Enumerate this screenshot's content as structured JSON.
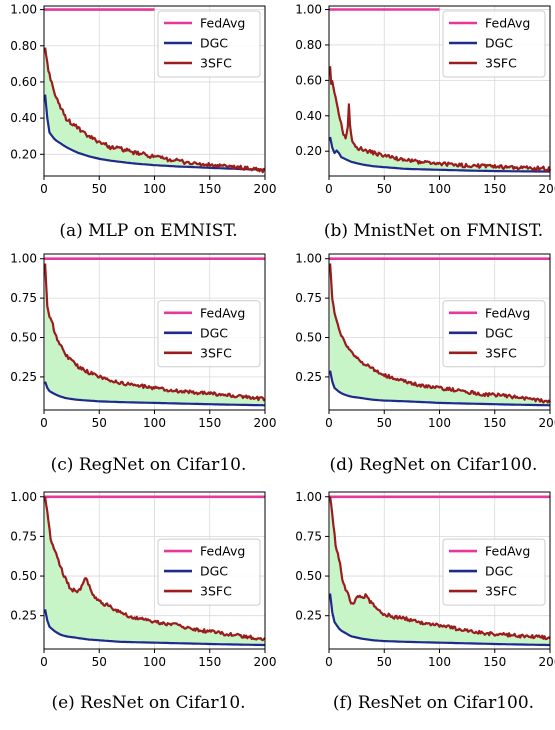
{
  "chart_data": [
    {
      "type": "line",
      "caption": "(a) MLP on EMNIST.",
      "xlim": [
        0,
        200
      ],
      "ylim": [
        0.08,
        1.02
      ],
      "xticks": [
        0,
        50,
        100,
        150,
        200
      ],
      "yticks": [
        0.2,
        0.4,
        0.6,
        0.8,
        1.0
      ],
      "ytick_labels": [
        "0.20",
        "0.40",
        "0.60",
        "0.80",
        "1.00"
      ],
      "grid": true,
      "legend_position": "top-right",
      "fill_between": [
        "DGC",
        "3SFC"
      ],
      "series": [
        {
          "name": "FedAvg",
          "color": "#e8379b",
          "x": [
            0,
            100
          ],
          "y": [
            1.0,
            1.0
          ]
        },
        {
          "name": "DGC",
          "color": "#1e2a8c",
          "x": [
            1,
            3,
            5,
            10,
            15,
            20,
            30,
            40,
            50,
            60,
            80,
            100,
            120,
            150,
            180,
            200
          ],
          "y": [
            0.53,
            0.4,
            0.32,
            0.28,
            0.26,
            0.24,
            0.21,
            0.19,
            0.175,
            0.165,
            0.15,
            0.14,
            0.133,
            0.125,
            0.118,
            0.115
          ]
        },
        {
          "name": "3SFC",
          "color": "#9b1c1c",
          "x": [
            1,
            3,
            5,
            8,
            10,
            15,
            20,
            25,
            30,
            35,
            40,
            50,
            60,
            70,
            80,
            90,
            100,
            120,
            140,
            160,
            180,
            200
          ],
          "y": [
            0.79,
            0.7,
            0.64,
            0.58,
            0.52,
            0.46,
            0.4,
            0.37,
            0.35,
            0.32,
            0.3,
            0.27,
            0.24,
            0.23,
            0.21,
            0.2,
            0.185,
            0.165,
            0.145,
            0.135,
            0.125,
            0.11
          ]
        }
      ]
    },
    {
      "type": "line",
      "caption": "(b) MnistNet on FMNIST.",
      "xlim": [
        0,
        200
      ],
      "ylim": [
        0.06,
        1.02
      ],
      "xticks": [
        0,
        50,
        100,
        150,
        200
      ],
      "yticks": [
        0.2,
        0.4,
        0.6,
        0.8,
        1.0
      ],
      "ytick_labels": [
        "0.20",
        "0.40",
        "0.60",
        "0.80",
        "1.00"
      ],
      "grid": true,
      "legend_position": "top-right",
      "fill_between": [
        "DGC",
        "3SFC"
      ],
      "series": [
        {
          "name": "FedAvg",
          "color": "#e8379b",
          "x": [
            0,
            100
          ],
          "y": [
            1.0,
            1.0
          ]
        },
        {
          "name": "DGC",
          "color": "#1e2a8c",
          "x": [
            1,
            3,
            5,
            8,
            10,
            15,
            20,
            30,
            40,
            50,
            70,
            100,
            130,
            160,
            200
          ],
          "y": [
            0.28,
            0.22,
            0.19,
            0.21,
            0.17,
            0.155,
            0.14,
            0.125,
            0.115,
            0.11,
            0.1,
            0.095,
            0.09,
            0.087,
            0.085
          ]
        },
        {
          "name": "3SFC",
          "color": "#9b1c1c",
          "x": [
            1,
            2,
            3,
            5,
            7,
            9,
            11,
            13,
            15,
            17,
            18,
            19,
            21,
            23,
            25,
            30,
            35,
            40,
            50,
            60,
            70,
            80,
            100,
            120,
            140,
            160,
            180,
            200
          ],
          "y": [
            0.68,
            0.58,
            0.6,
            0.52,
            0.48,
            0.4,
            0.36,
            0.3,
            0.28,
            0.33,
            0.46,
            0.35,
            0.26,
            0.25,
            0.22,
            0.21,
            0.2,
            0.19,
            0.175,
            0.16,
            0.15,
            0.14,
            0.13,
            0.12,
            0.115,
            0.11,
            0.105,
            0.1
          ]
        }
      ]
    },
    {
      "type": "line",
      "caption": "(c) RegNet on Cifar10.",
      "xlim": [
        0,
        200
      ],
      "ylim": [
        0.04,
        1.03
      ],
      "xticks": [
        0,
        50,
        100,
        150,
        200
      ],
      "yticks": [
        0.25,
        0.5,
        0.75,
        1.0
      ],
      "ytick_labels": [
        "0.25",
        "0.50",
        "0.75",
        "1.00"
      ],
      "grid": true,
      "legend_position": "right",
      "fill_between": [
        "DGC",
        "3SFC"
      ],
      "series": [
        {
          "name": "FedAvg",
          "color": "#e8379b",
          "x": [
            0,
            200
          ],
          "y": [
            1.0,
            1.0
          ]
        },
        {
          "name": "DGC",
          "color": "#1e2a8c",
          "x": [
            1,
            3,
            5,
            10,
            15,
            20,
            30,
            40,
            50,
            70,
            100,
            130,
            160,
            200
          ],
          "y": [
            0.22,
            0.18,
            0.16,
            0.14,
            0.125,
            0.115,
            0.105,
            0.1,
            0.095,
            0.09,
            0.085,
            0.08,
            0.075,
            0.07
          ]
        },
        {
          "name": "3SFC",
          "color": "#9b1c1c",
          "x": [
            1,
            3,
            5,
            8,
            10,
            15,
            20,
            25,
            30,
            40,
            50,
            60,
            70,
            80,
            100,
            120,
            140,
            160,
            180,
            200
          ],
          "y": [
            0.97,
            0.7,
            0.63,
            0.58,
            0.52,
            0.45,
            0.39,
            0.35,
            0.32,
            0.28,
            0.25,
            0.23,
            0.21,
            0.2,
            0.18,
            0.16,
            0.15,
            0.14,
            0.125,
            0.11
          ]
        }
      ]
    },
    {
      "type": "line",
      "caption": "(d) RegNet on Cifar100.",
      "xlim": [
        0,
        200
      ],
      "ylim": [
        0.04,
        1.03
      ],
      "xticks": [
        0,
        50,
        100,
        150,
        200
      ],
      "yticks": [
        0.25,
        0.5,
        0.75,
        1.0
      ],
      "ytick_labels": [
        "0.25",
        "0.50",
        "0.75",
        "1.00"
      ],
      "grid": true,
      "legend_position": "right",
      "fill_between": [
        "DGC",
        "3SFC"
      ],
      "series": [
        {
          "name": "FedAvg",
          "color": "#e8379b",
          "x": [
            0,
            200
          ],
          "y": [
            1.0,
            1.0
          ]
        },
        {
          "name": "DGC",
          "color": "#1e2a8c",
          "x": [
            1,
            3,
            5,
            10,
            15,
            20,
            30,
            40,
            50,
            70,
            100,
            130,
            160,
            200
          ],
          "y": [
            0.29,
            0.22,
            0.18,
            0.15,
            0.135,
            0.125,
            0.115,
            0.105,
            0.1,
            0.095,
            0.085,
            0.08,
            0.075,
            0.07
          ]
        },
        {
          "name": "3SFC",
          "color": "#9b1c1c",
          "x": [
            1,
            3,
            5,
            8,
            10,
            15,
            20,
            25,
            30,
            40,
            50,
            60,
            70,
            80,
            100,
            120,
            140,
            160,
            180,
            200
          ],
          "y": [
            0.97,
            0.75,
            0.65,
            0.58,
            0.53,
            0.46,
            0.41,
            0.37,
            0.34,
            0.3,
            0.26,
            0.24,
            0.22,
            0.2,
            0.18,
            0.16,
            0.14,
            0.13,
            0.11,
            0.09
          ]
        }
      ]
    },
    {
      "type": "line",
      "caption": "(e) ResNet on Cifar10.",
      "xlim": [
        0,
        200
      ],
      "ylim": [
        0.04,
        1.03
      ],
      "xticks": [
        0,
        50,
        100,
        150,
        200
      ],
      "yticks": [
        0.25,
        0.5,
        0.75,
        1.0
      ],
      "ytick_labels": [
        "0.25",
        "0.50",
        "0.75",
        "1.00"
      ],
      "grid": true,
      "legend_position": "right",
      "fill_between": [
        "DGC",
        "3SFC"
      ],
      "series": [
        {
          "name": "FedAvg",
          "color": "#e8379b",
          "x": [
            0,
            200
          ],
          "y": [
            1.0,
            1.0
          ]
        },
        {
          "name": "DGC",
          "color": "#1e2a8c",
          "x": [
            1,
            3,
            5,
            10,
            15,
            20,
            30,
            40,
            50,
            70,
            100,
            130,
            160,
            200
          ],
          "y": [
            0.29,
            0.22,
            0.18,
            0.15,
            0.13,
            0.12,
            0.11,
            0.1,
            0.095,
            0.085,
            0.08,
            0.075,
            0.07,
            0.065
          ]
        },
        {
          "name": "3SFC",
          "color": "#9b1c1c",
          "x": [
            1,
            2,
            4,
            6,
            8,
            10,
            12,
            15,
            18,
            21,
            24,
            27,
            30,
            33,
            36,
            38,
            40,
            43,
            46,
            50,
            53,
            56,
            60,
            65,
            70,
            80,
            90,
            100,
            120,
            140,
            160,
            180,
            200
          ],
          "y": [
            1.0,
            0.95,
            0.85,
            0.73,
            0.7,
            0.65,
            0.62,
            0.56,
            0.5,
            0.46,
            0.42,
            0.41,
            0.4,
            0.42,
            0.47,
            0.49,
            0.45,
            0.4,
            0.37,
            0.34,
            0.33,
            0.32,
            0.31,
            0.28,
            0.27,
            0.24,
            0.23,
            0.21,
            0.19,
            0.16,
            0.14,
            0.12,
            0.1
          ]
        }
      ]
    },
    {
      "type": "line",
      "caption": "(f) ResNet on Cifar100.",
      "xlim": [
        0,
        200
      ],
      "ylim": [
        0.04,
        1.03
      ],
      "xticks": [
        0,
        50,
        100,
        150,
        200
      ],
      "yticks": [
        0.25,
        0.5,
        0.75,
        1.0
      ],
      "ytick_labels": [
        "0.25",
        "0.50",
        "0.75",
        "1.00"
      ],
      "grid": true,
      "legend_position": "right",
      "fill_between": [
        "DGC",
        "3SFC"
      ],
      "series": [
        {
          "name": "FedAvg",
          "color": "#e8379b",
          "x": [
            0,
            200
          ],
          "y": [
            1.0,
            1.0
          ]
        },
        {
          "name": "DGC",
          "color": "#1e2a8c",
          "x": [
            1,
            3,
            5,
            10,
            15,
            20,
            30,
            40,
            50,
            70,
            100,
            130,
            160,
            200
          ],
          "y": [
            0.39,
            0.27,
            0.21,
            0.16,
            0.14,
            0.12,
            0.105,
            0.095,
            0.09,
            0.085,
            0.08,
            0.075,
            0.07,
            0.065
          ]
        },
        {
          "name": "3SFC",
          "color": "#9b1c1c",
          "x": [
            1,
            2,
            4,
            6,
            8,
            10,
            12,
            15,
            18,
            20,
            22,
            25,
            28,
            31,
            34,
            37,
            40,
            45,
            50,
            60,
            70,
            80,
            100,
            120,
            140,
            160,
            180,
            200
          ],
          "y": [
            1.0,
            0.95,
            0.82,
            0.7,
            0.64,
            0.57,
            0.48,
            0.42,
            0.37,
            0.33,
            0.32,
            0.36,
            0.38,
            0.37,
            0.38,
            0.34,
            0.32,
            0.28,
            0.26,
            0.24,
            0.23,
            0.21,
            0.19,
            0.16,
            0.14,
            0.13,
            0.12,
            0.11
          ]
        }
      ]
    }
  ]
}
